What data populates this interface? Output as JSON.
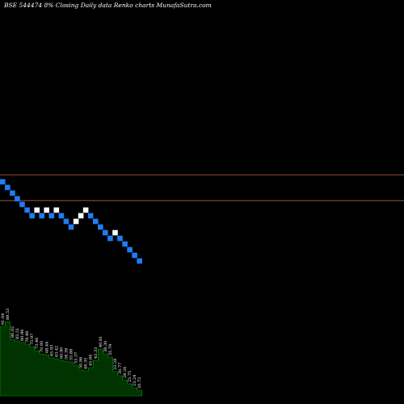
{
  "chart_data": {
    "type": "renko",
    "title": "BSE 544474  8%  Closing Daily data  Renko  charts MunafaSutra.com",
    "colors": {
      "background": "#000000",
      "down_brick": "#1f7cf2",
      "up_brick": "#ffffff",
      "reference_line": "#a0522d",
      "volume_fill": "#003300",
      "volume_line": "#00a000"
    },
    "reference_lines": [
      135.6,
      124.3
    ],
    "bricks": [
      {
        "i": 0,
        "price": 132.6,
        "dir": "down"
      },
      {
        "i": 1,
        "price": 130.1,
        "dir": "down"
      },
      {
        "i": 2,
        "price": 127.6,
        "dir": "down"
      },
      {
        "i": 3,
        "price": 125.1,
        "dir": "down"
      },
      {
        "i": 4,
        "price": 122.6,
        "dir": "down"
      },
      {
        "i": 5,
        "price": 120.1,
        "dir": "down"
      },
      {
        "i": 6,
        "price": 117.6,
        "dir": "down"
      },
      {
        "i": 7,
        "price": 120.1,
        "dir": "up"
      },
      {
        "i": 8,
        "price": 117.6,
        "dir": "down"
      },
      {
        "i": 9,
        "price": 120.1,
        "dir": "up"
      },
      {
        "i": 10,
        "price": 117.6,
        "dir": "down"
      },
      {
        "i": 11,
        "price": 120.1,
        "dir": "up"
      },
      {
        "i": 12,
        "price": 117.6,
        "dir": "down"
      },
      {
        "i": 13,
        "price": 115.1,
        "dir": "down"
      },
      {
        "i": 14,
        "price": 112.6,
        "dir": "down"
      },
      {
        "i": 15,
        "price": 115.1,
        "dir": "up"
      },
      {
        "i": 16,
        "price": 117.6,
        "dir": "up"
      },
      {
        "i": 17,
        "price": 120.1,
        "dir": "up"
      },
      {
        "i": 18,
        "price": 117.6,
        "dir": "down"
      },
      {
        "i": 19,
        "price": 115.1,
        "dir": "down"
      },
      {
        "i": 20,
        "price": 112.6,
        "dir": "down"
      },
      {
        "i": 21,
        "price": 110.1,
        "dir": "down"
      },
      {
        "i": 22,
        "price": 107.6,
        "dir": "down"
      },
      {
        "i": 23,
        "price": 110.1,
        "dir": "up"
      },
      {
        "i": 24,
        "price": 107.6,
        "dir": "down"
      },
      {
        "i": 25,
        "price": 105.1,
        "dir": "down"
      },
      {
        "i": 26,
        "price": 102.6,
        "dir": "down"
      },
      {
        "i": 27,
        "price": 100.1,
        "dir": "down"
      },
      {
        "i": 28,
        "price": 97.6,
        "dir": "down"
      }
    ],
    "volume": {
      "values": [
        86,
        92,
        70,
        68,
        66,
        64,
        61,
        56,
        52,
        51,
        47,
        46,
        44,
        43,
        42,
        38,
        32,
        31,
        35,
        44,
        58,
        52,
        48,
        30,
        25,
        20,
        15,
        10,
        7
      ],
      "labels": [
        "91.04",
        "88.53",
        "86.02",
        "83.51",
        "80.99",
        "78.48",
        "75.97",
        "73.46",
        "70.95",
        "68.44",
        "65.93",
        "63.42",
        "60.90",
        "58.39",
        "55.88",
        "53.37",
        "50.86",
        "48.35",
        "45.84",
        "43.33",
        "40.81",
        "38.30",
        "35.79",
        "33.28",
        "30.77",
        "28.26",
        "25.75",
        "23.24",
        "20.72"
      ]
    }
  }
}
